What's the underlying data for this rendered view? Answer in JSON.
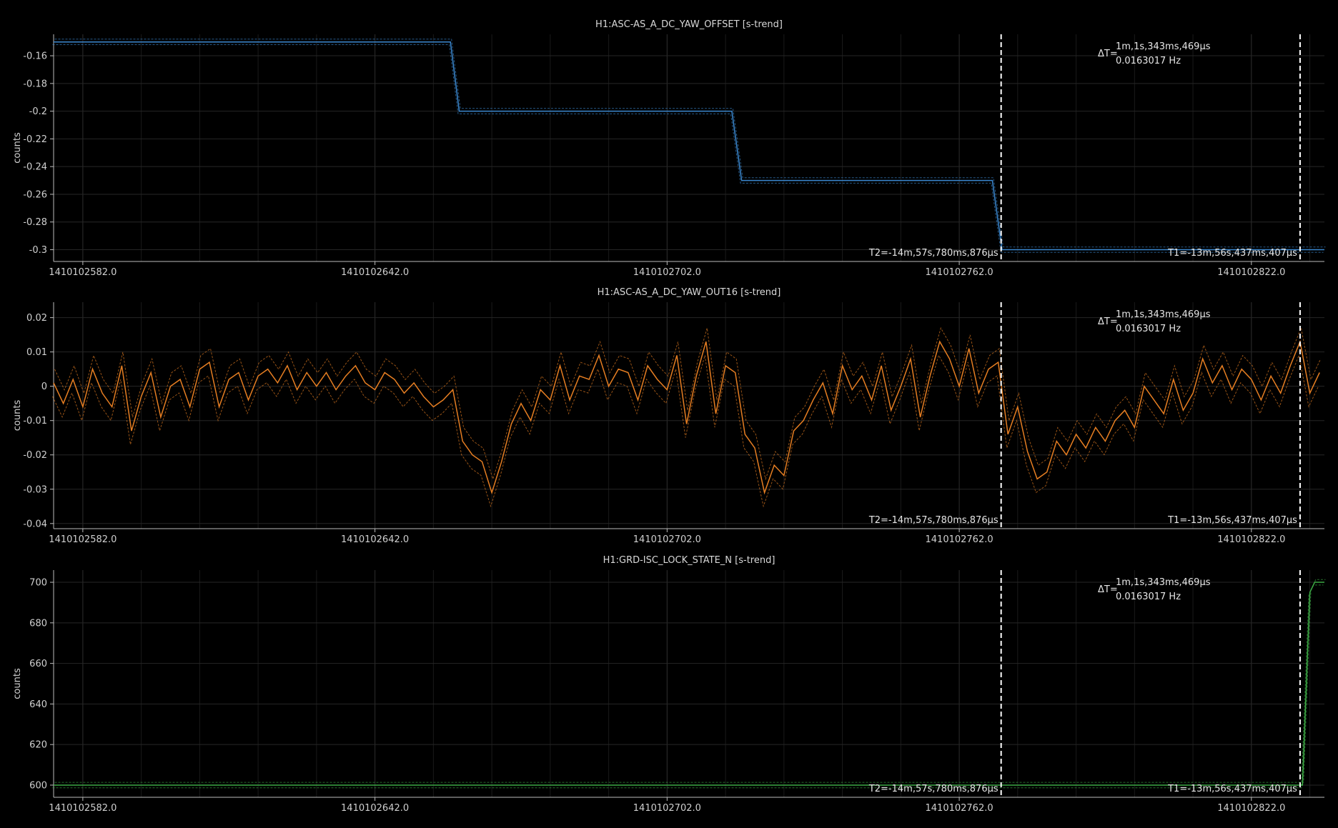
{
  "xaxis": {
    "ticks": [
      1410102582.0,
      1410102642.0,
      1410102702.0,
      1410102762.0,
      1410102822.0
    ],
    "tick_labels": [
      "1410102582.0",
      "1410102642.0",
      "1410102702.0",
      "1410102762.0",
      "1410102822.0"
    ],
    "range": [
      1410102576.0,
      1410102837.0
    ]
  },
  "cursors": {
    "t2_x": 1410102770.6,
    "t1_x": 1410102832.0,
    "t2_label": "T2=-14m,57s,780ms,876µs",
    "t1_label": "T1=-13m,56s,437ms,407µs",
    "delta_prefix": "ΔT=",
    "delta_time": "1m,1s,343ms,469µs",
    "delta_freq": "0.0163017 Hz"
  },
  "chart_data": [
    {
      "type": "line",
      "title": "H1:ASC-AS_A_DC_YAW_OFFSET [s-trend]",
      "ylabel": "counts",
      "ylim": [
        -0.3085,
        -0.1445
      ],
      "yticks": [
        -0.16,
        -0.18,
        -0.2,
        -0.22,
        -0.24,
        -0.26,
        -0.28,
        -0.3
      ],
      "ytick_labels": [
        "-0.16",
        "-0.18",
        "-0.2",
        "-0.22",
        "-0.24",
        "-0.26",
        "-0.28",
        "-0.3"
      ],
      "color": "#3b88d0",
      "grid": true,
      "series": [
        {
          "x": [
            1410102576.0,
            1410102657.5,
            1410102659.3,
            1410102715.3,
            1410102717.3,
            1410102768.8,
            1410102770.8,
            1410102837.0
          ],
          "values": [
            -0.15,
            -0.15,
            -0.2,
            -0.2,
            -0.25,
            -0.25,
            -0.3,
            -0.3
          ]
        }
      ]
    },
    {
      "type": "line",
      "title": "H1:ASC-AS_A_DC_YAW_OUT16 [s-trend]",
      "ylabel": "counts",
      "ylim": [
        -0.0415,
        0.0245
      ],
      "yticks": [
        0.02,
        0.01,
        0,
        -0.01,
        -0.02,
        -0.03,
        -0.04
      ],
      "ytick_labels": [
        "0.02",
        "0.01",
        "0",
        "-0.01",
        "-0.02",
        "-0.03",
        "-0.04"
      ],
      "color": "#e67e22",
      "grid": true,
      "series": [
        {
          "x": [
            1410102576,
            1410102578,
            1410102580,
            1410102582,
            1410102584,
            1410102586,
            1410102588,
            1410102590,
            1410102592,
            1410102594,
            1410102596,
            1410102598,
            1410102600,
            1410102602,
            1410102604,
            1410102606,
            1410102608,
            1410102610,
            1410102612,
            1410102614,
            1410102616,
            1410102618,
            1410102620,
            1410102622,
            1410102624,
            1410102626,
            1410102628,
            1410102630,
            1410102632,
            1410102634,
            1410102636,
            1410102638,
            1410102640,
            1410102642,
            1410102644,
            1410102646,
            1410102648,
            1410102650,
            1410102652,
            1410102654,
            1410102656,
            1410102658,
            1410102660,
            1410102662,
            1410102664,
            1410102666,
            1410102668,
            1410102670,
            1410102672,
            1410102674,
            1410102676,
            1410102678,
            1410102680,
            1410102682,
            1410102684,
            1410102686,
            1410102688,
            1410102690,
            1410102692,
            1410102694,
            1410102696,
            1410102698,
            1410102700,
            1410102702,
            1410102704,
            1410102706,
            1410102708,
            1410102710,
            1410102712,
            1410102714,
            1410102716,
            1410102718,
            1410102720,
            1410102722,
            1410102724,
            1410102726,
            1410102728,
            1410102730,
            1410102732,
            1410102734,
            1410102736,
            1410102738,
            1410102740,
            1410102742,
            1410102744,
            1410102746,
            1410102748,
            1410102750,
            1410102752,
            1410102754,
            1410102756,
            1410102758,
            1410102760,
            1410102762,
            1410102764,
            1410102766,
            1410102768,
            1410102770,
            1410102772,
            1410102774,
            1410102776,
            1410102778,
            1410102780,
            1410102782,
            1410102784,
            1410102786,
            1410102788,
            1410102790,
            1410102792,
            1410102794,
            1410102796,
            1410102798,
            1410102800,
            1410102802,
            1410102804,
            1410102806,
            1410102808,
            1410102810,
            1410102812,
            1410102814,
            1410102816,
            1410102818,
            1410102820,
            1410102822,
            1410102824,
            1410102826,
            1410102828,
            1410102830,
            1410102832,
            1410102834,
            1410102836
          ],
          "values": [
            0.001,
            -0.005,
            0.002,
            -0.006,
            0.005,
            -0.002,
            -0.006,
            0.006,
            -0.013,
            -0.003,
            0.004,
            -0.009,
            0.0,
            0.002,
            -0.006,
            0.005,
            0.007,
            -0.006,
            0.002,
            0.004,
            -0.004,
            0.003,
            0.005,
            0.001,
            0.006,
            -0.001,
            0.004,
            0.0,
            0.004,
            -0.001,
            0.003,
            0.006,
            0.001,
            -0.001,
            0.004,
            0.002,
            -0.002,
            0.001,
            -0.003,
            -0.006,
            -0.004,
            -0.001,
            -0.016,
            -0.02,
            -0.022,
            -0.031,
            -0.022,
            -0.011,
            -0.005,
            -0.01,
            -0.001,
            -0.004,
            0.006,
            -0.004,
            0.003,
            0.002,
            0.009,
            0.0,
            0.005,
            0.004,
            -0.004,
            0.006,
            0.002,
            -0.001,
            0.009,
            -0.011,
            0.003,
            0.013,
            -0.008,
            0.006,
            0.004,
            -0.014,
            -0.018,
            -0.031,
            -0.023,
            -0.026,
            -0.013,
            -0.01,
            -0.004,
            0.001,
            -0.008,
            0.006,
            -0.001,
            0.003,
            -0.004,
            0.006,
            -0.007,
            0.0,
            0.008,
            -0.009,
            0.003,
            0.013,
            0.008,
            0.0,
            0.011,
            -0.002,
            0.005,
            0.007,
            -0.014,
            -0.006,
            -0.019,
            -0.027,
            -0.025,
            -0.016,
            -0.02,
            -0.014,
            -0.018,
            -0.012,
            -0.016,
            -0.01,
            -0.007,
            -0.012,
            0.0,
            -0.004,
            -0.008,
            0.002,
            -0.007,
            -0.002,
            0.008,
            0.001,
            0.006,
            -0.001,
            0.005,
            0.002,
            -0.004,
            0.003,
            -0.002,
            0.006,
            0.013,
            -0.002,
            0.004
          ]
        }
      ]
    },
    {
      "type": "line",
      "title": "H1:GRD-ISC_LOCK_STATE_N [s-trend]",
      "ylabel": "counts",
      "ylim": [
        594,
        706
      ],
      "yticks": [
        700,
        680,
        660,
        640,
        620,
        600
      ],
      "ytick_labels": [
        "700",
        "680",
        "660",
        "640",
        "620",
        "600"
      ],
      "color": "#3ca844",
      "grid": true,
      "series": [
        {
          "x": [
            1410102576.0,
            1410102832.5,
            1410102834.0,
            1410102835.0,
            1410102837.0
          ],
          "values": [
            600,
            600,
            695,
            700,
            700
          ]
        }
      ]
    }
  ]
}
